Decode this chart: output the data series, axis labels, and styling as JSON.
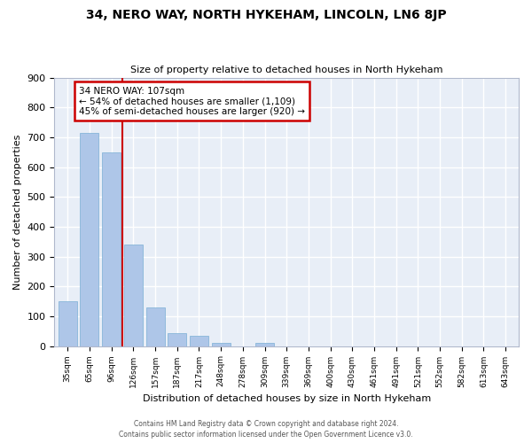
{
  "title": "34, NERO WAY, NORTH HYKEHAM, LINCOLN, LN6 8JP",
  "subtitle": "Size of property relative to detached houses in North Hykeham",
  "xlabel": "Distribution of detached houses by size in North Hykeham",
  "ylabel": "Number of detached properties",
  "categories": [
    "35sqm",
    "65sqm",
    "96sqm",
    "126sqm",
    "157sqm",
    "187sqm",
    "217sqm",
    "248sqm",
    "278sqm",
    "309sqm",
    "339sqm",
    "369sqm",
    "400sqm",
    "430sqm",
    "461sqm",
    "491sqm",
    "521sqm",
    "552sqm",
    "582sqm",
    "613sqm",
    "643sqm"
  ],
  "bar_values": [
    150,
    715,
    650,
    340,
    128,
    44,
    33,
    12,
    0,
    10,
    0,
    0,
    0,
    0,
    0,
    0,
    0,
    0,
    0,
    0,
    0
  ],
  "bar_color": "#aec6e8",
  "bar_edgecolor": "#7aafd4",
  "property_line_label": "34 NERO WAY: 107sqm",
  "annotation_line1": "← 54% of detached houses are smaller (1,109)",
  "annotation_line2": "45% of semi-detached houses are larger (920) →",
  "annotation_box_facecolor": "#ffffff",
  "annotation_box_edgecolor": "#cc0000",
  "vline_color": "#cc0000",
  "ylim": [
    0,
    900
  ],
  "yticks": [
    0,
    100,
    200,
    300,
    400,
    500,
    600,
    700,
    800,
    900
  ],
  "background_color": "#dde4f0",
  "plot_bg_color": "#e8eef7",
  "grid_color": "#ffffff",
  "fig_bg_color": "#ffffff",
  "footer_line1": "Contains HM Land Registry data © Crown copyright and database right 2024.",
  "footer_line2": "Contains public sector information licensed under the Open Government Licence v3.0.",
  "vline_x_bar_index": 2,
  "vline_x_offset": 0.5
}
